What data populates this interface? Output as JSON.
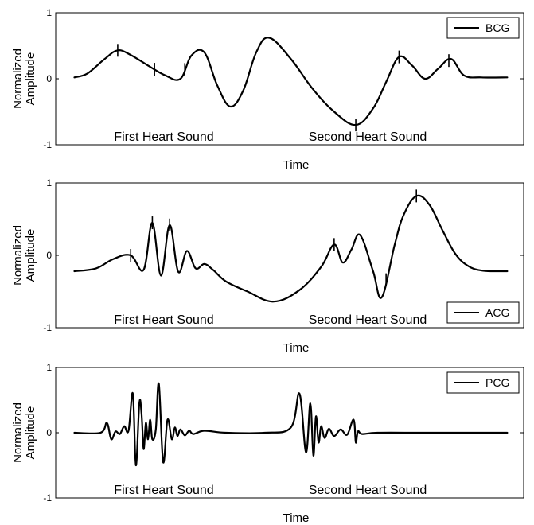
{
  "chart_data": [
    {
      "type": "line",
      "legend": {
        "label": "BCG",
        "position": "top-right"
      },
      "xlabel": "Time",
      "ylabel": [
        "Normalized",
        "Amplitude"
      ],
      "ylim": [
        -1,
        1
      ],
      "yticks": [
        "1",
        "0",
        "-1"
      ],
      "annotations": [
        "First Heart Sound",
        "Second Heart Sound"
      ],
      "series": [
        {
          "name": "BCG",
          "x": [
            0,
            0.03,
            0.07,
            0.1,
            0.13,
            0.17,
            0.21,
            0.245,
            0.27,
            0.3,
            0.33,
            0.36,
            0.39,
            0.42,
            0.45,
            0.5,
            0.55,
            0.6,
            0.65,
            0.69,
            0.72,
            0.75,
            0.78,
            0.81,
            0.84,
            0.87,
            0.9,
            0.94,
            1.0
          ],
          "y": [
            0.02,
            0.08,
            0.3,
            0.43,
            0.36,
            0.2,
            0.05,
            0.0,
            0.35,
            0.4,
            -0.1,
            -0.42,
            -0.18,
            0.4,
            0.62,
            0.3,
            -0.15,
            -0.5,
            -0.7,
            -0.45,
            -0.05,
            0.33,
            0.2,
            0.0,
            0.15,
            0.3,
            0.05,
            0.02,
            0.02
          ]
        }
      ],
      "markers_x": [
        0.1,
        0.185,
        0.255,
        0.65,
        0.75,
        0.865
      ]
    },
    {
      "type": "line",
      "legend": {
        "label": "ACG",
        "position": "bottom-right"
      },
      "xlabel": "Time",
      "ylabel": [
        "Normalized",
        "Amplitude"
      ],
      "ylim": [
        -1,
        1
      ],
      "yticks": [
        "1",
        "0",
        "-1"
      ],
      "annotations": [
        "First Heart Sound",
        "Second Heart Sound"
      ],
      "series": [
        {
          "name": "ACG",
          "x": [
            0,
            0.05,
            0.09,
            0.13,
            0.16,
            0.18,
            0.2,
            0.22,
            0.24,
            0.26,
            0.28,
            0.3,
            0.32,
            0.35,
            0.4,
            0.46,
            0.52,
            0.57,
            0.6,
            0.62,
            0.64,
            0.66,
            0.69,
            0.71,
            0.74,
            0.76,
            0.79,
            0.82,
            0.85,
            0.88,
            0.91,
            0.94,
            0.97,
            1.0
          ],
          "y": [
            -0.22,
            -0.18,
            -0.05,
            0.0,
            -0.2,
            0.45,
            -0.28,
            0.42,
            -0.23,
            0.06,
            -0.18,
            -0.12,
            -0.2,
            -0.36,
            -0.5,
            -0.64,
            -0.48,
            -0.16,
            0.15,
            -0.1,
            0.08,
            0.28,
            -0.22,
            -0.58,
            0.15,
            0.55,
            0.82,
            0.7,
            0.35,
            0.02,
            -0.15,
            -0.21,
            -0.22,
            -0.22
          ]
        }
      ],
      "markers_x": [
        0.13,
        0.18,
        0.22,
        0.6,
        0.72,
        0.79
      ]
    },
    {
      "type": "line",
      "legend": {
        "label": "PCG",
        "position": "top-right"
      },
      "xlabel": "Time",
      "ylabel": [
        "Normalized",
        "Amplitude"
      ],
      "ylim": [
        -1,
        1
      ],
      "yticks": [
        "1",
        "0",
        "-1"
      ],
      "annotations": [
        "First Heart Sound",
        "Second Heart Sound"
      ],
      "series": [
        {
          "name": "PCG",
          "x": [
            0,
            0.06,
            0.075,
            0.085,
            0.095,
            0.105,
            0.115,
            0.125,
            0.135,
            0.142,
            0.15,
            0.155,
            0.16,
            0.165,
            0.17,
            0.175,
            0.18,
            0.188,
            0.195,
            0.205,
            0.215,
            0.225,
            0.232,
            0.238,
            0.245,
            0.255,
            0.265,
            0.275,
            0.3,
            0.35,
            0.44,
            0.5,
            0.52,
            0.535,
            0.545,
            0.552,
            0.558,
            0.564,
            0.57,
            0.578,
            0.588,
            0.6,
            0.615,
            0.63,
            0.645,
            0.65,
            0.655,
            0.665,
            0.7,
            0.8,
            0.9,
            1.0
          ],
          "y": [
            0,
            0,
            0.15,
            -0.1,
            0.02,
            -0.02,
            0.1,
            0.03,
            0.6,
            -0.5,
            0.45,
            0.3,
            -0.25,
            0.15,
            -0.1,
            0.2,
            -0.1,
            0.05,
            0.75,
            -0.45,
            0.2,
            -0.1,
            0.08,
            -0.05,
            0.05,
            -0.04,
            0.03,
            -0.02,
            0.03,
            0.0,
            0.0,
            0.08,
            0.6,
            -0.3,
            0.45,
            -0.35,
            0.25,
            -0.15,
            0.1,
            -0.08,
            0.06,
            -0.05,
            0.05,
            -0.03,
            0.2,
            -0.15,
            0.02,
            -0.02,
            0.0,
            0.0,
            0.0,
            0.0
          ]
        }
      ]
    }
  ]
}
